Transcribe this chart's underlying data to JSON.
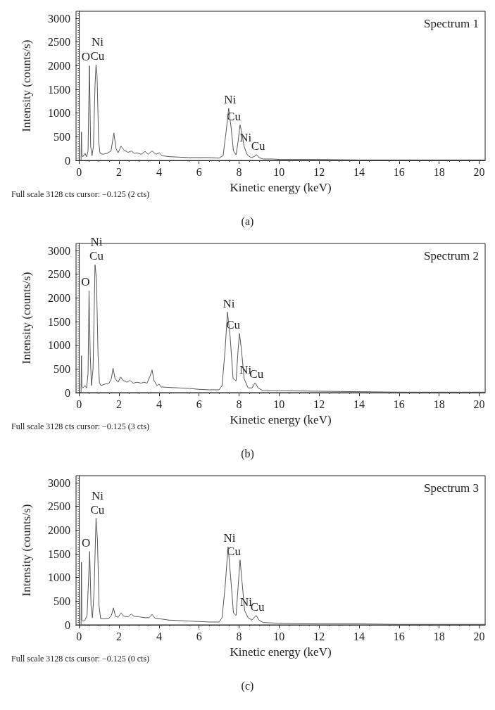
{
  "chart_data": [
    {
      "type": "line",
      "title": "Spectrum 1",
      "subtitle": "(a)",
      "xlabel": "Kinetic energy (keV)",
      "ylabel": "Intensity (counts/s)",
      "color": "#555555",
      "xlim": [
        -0.15,
        20.3
      ],
      "ylim": [
        0,
        3150
      ],
      "xticks": [
        0,
        2,
        4,
        6,
        8,
        10,
        12,
        14,
        16,
        18,
        20
      ],
      "yticks": [
        0,
        500,
        1000,
        1500,
        2000,
        2500,
        3000
      ],
      "x": [
        0.1,
        0.12,
        0.14,
        0.2,
        0.3,
        0.38,
        0.45,
        0.52,
        0.58,
        0.65,
        0.72,
        0.8,
        0.85,
        0.9,
        0.98,
        1.05,
        1.2,
        1.4,
        1.6,
        1.74,
        1.85,
        1.95,
        2.1,
        2.25,
        2.45,
        2.62,
        2.75,
        2.9,
        3.1,
        3.3,
        3.45,
        3.65,
        3.85,
        4.02,
        4.15,
        4.5,
        5,
        5.5,
        6,
        6.5,
        7,
        7.2,
        7.35,
        7.48,
        7.6,
        7.72,
        7.85,
        7.95,
        8.05,
        8.15,
        8.25,
        8.4,
        8.6,
        8.75,
        8.88,
        9.0,
        9.2,
        9.7,
        10,
        11,
        12,
        14,
        16,
        18,
        20,
        20.3
      ],
      "values": [
        0,
        600,
        100,
        80,
        150,
        80,
        200,
        2000,
        300,
        100,
        300,
        1600,
        2020,
        1800,
        400,
        150,
        130,
        150,
        200,
        580,
        250,
        160,
        300,
        220,
        170,
        200,
        150,
        160,
        130,
        190,
        130,
        200,
        130,
        160,
        100,
        80,
        70,
        60,
        60,
        60,
        50,
        100,
        600,
        1100,
        700,
        200,
        120,
        400,
        750,
        550,
        300,
        120,
        60,
        80,
        120,
        60,
        30,
        30,
        20,
        20,
        20,
        10,
        10,
        10,
        10,
        10
      ],
      "annotations": [
        "Full scale 3128 cts cursor: −0.125 (2 cts)",
        {
          "text": "O",
          "x": 0.52,
          "y": 2000
        },
        {
          "text": "Cu",
          "x": 0.85,
          "y": 2020
        },
        {
          "text": "Ni",
          "x": 0.85,
          "y": 2020
        },
        {
          "text": "Ni",
          "x": 7.48,
          "y": 1100
        },
        {
          "text": "Cu",
          "x": 8.05,
          "y": 750
        },
        {
          "text": "Ni",
          "x": 8.25,
          "y": 300
        },
        {
          "text": "Cu",
          "x": 8.88,
          "y": 120
        }
      ]
    },
    {
      "type": "line",
      "title": "Spectrum 2",
      "subtitle": "(b)",
      "xlabel": "Kinetic energy (keV)",
      "ylabel": "Intensity (counts/s)",
      "color": "#555555",
      "xlim": [
        -0.15,
        20.3
      ],
      "ylim": [
        0,
        3150
      ],
      "xticks": [
        0,
        2,
        4,
        6,
        8,
        10,
        12,
        14,
        16,
        18,
        20
      ],
      "yticks": [
        0,
        500,
        1000,
        1500,
        2000,
        2500,
        3000
      ],
      "x": [
        0.1,
        0.12,
        0.14,
        0.2,
        0.3,
        0.38,
        0.45,
        0.5,
        0.56,
        0.62,
        0.7,
        0.8,
        0.87,
        0.95,
        1.02,
        1.1,
        1.3,
        1.5,
        1.62,
        1.7,
        1.8,
        1.95,
        2.08,
        2.2,
        2.4,
        2.55,
        2.7,
        2.9,
        3.1,
        3.25,
        3.4,
        3.55,
        3.65,
        3.75,
        3.9,
        4.0,
        4.1,
        4.5,
        5,
        5.5,
        6,
        6.5,
        7,
        7.15,
        7.3,
        7.42,
        7.55,
        7.7,
        7.85,
        7.95,
        8.02,
        8.12,
        8.25,
        8.45,
        8.65,
        8.8,
        8.95,
        9.2,
        9.7,
        10,
        12,
        14,
        16,
        18,
        20,
        20.3
      ],
      "values": [
        0,
        780,
        120,
        100,
        150,
        100,
        400,
        2150,
        800,
        150,
        500,
        2700,
        2400,
        800,
        200,
        150,
        180,
        200,
        300,
        520,
        300,
        220,
        330,
        260,
        220,
        260,
        200,
        220,
        200,
        220,
        200,
        350,
        480,
        250,
        150,
        180,
        120,
        110,
        100,
        90,
        70,
        60,
        60,
        150,
        900,
        1700,
        1200,
        300,
        250,
        900,
        1250,
        900,
        300,
        100,
        100,
        210,
        100,
        40,
        40,
        40,
        30,
        20,
        10,
        10,
        10,
        10
      ],
      "annotations": [
        "Full scale 3128 cts cursor: −0.125 (3 cts)",
        {
          "text": "O",
          "x": 0.5,
          "y": 2150
        },
        {
          "text": "Cu",
          "x": 0.8,
          "y": 2700
        },
        {
          "text": "Ni",
          "x": 0.8,
          "y": 2700
        },
        {
          "text": "Ni",
          "x": 7.42,
          "y": 1700
        },
        {
          "text": "Cu",
          "x": 8.02,
          "y": 1250
        },
        {
          "text": "Ni",
          "x": 8.25,
          "y": 300
        },
        {
          "text": "Cu",
          "x": 8.8,
          "y": 210
        }
      ]
    },
    {
      "type": "line",
      "title": "Spectrum 3",
      "subtitle": "(c)",
      "xlabel": "Kinetic energy (keV)",
      "ylabel": "Intensity (counts/s)",
      "color": "#555555",
      "xlim": [
        -0.15,
        20.3
      ],
      "ylim": [
        0,
        3150
      ],
      "xticks": [
        0,
        2,
        4,
        6,
        8,
        10,
        12,
        14,
        16,
        18,
        20
      ],
      "yticks": [
        0,
        500,
        1000,
        1500,
        2000,
        2500,
        3000
      ],
      "x": [
        0.1,
        0.12,
        0.14,
        0.2,
        0.3,
        0.4,
        0.48,
        0.53,
        0.6,
        0.67,
        0.75,
        0.85,
        0.92,
        1.0,
        1.08,
        1.3,
        1.5,
        1.62,
        1.72,
        1.82,
        1.95,
        2.1,
        2.25,
        2.45,
        2.62,
        2.75,
        3.0,
        3.3,
        3.5,
        3.65,
        3.8,
        4.0,
        4.5,
        5,
        5.5,
        6,
        6.5,
        7,
        7.15,
        7.3,
        7.45,
        7.58,
        7.72,
        7.85,
        7.95,
        8.05,
        8.15,
        8.28,
        8.45,
        8.65,
        8.85,
        9.0,
        9.2,
        9.7,
        10,
        12,
        14,
        16,
        18,
        20,
        20.3
      ],
      "values": [
        0,
        1320,
        100,
        80,
        100,
        200,
        1000,
        1550,
        400,
        150,
        700,
        2250,
        1800,
        400,
        130,
        130,
        140,
        200,
        360,
        180,
        160,
        250,
        180,
        170,
        230,
        180,
        170,
        150,
        150,
        220,
        140,
        130,
        100,
        90,
        80,
        70,
        60,
        60,
        150,
        800,
        1650,
        1000,
        250,
        200,
        800,
        1370,
        900,
        300,
        150,
        100,
        200,
        100,
        50,
        40,
        30,
        20,
        20,
        10,
        10,
        10,
        10
      ],
      "annotations": [
        "Full scale 3128 cts cursor: −0.125 (0 cts)",
        {
          "text": "O",
          "x": 0.53,
          "y": 1550
        },
        {
          "text": "Cu",
          "x": 0.85,
          "y": 2250
        },
        {
          "text": "Ni",
          "x": 0.85,
          "y": 2250
        },
        {
          "text": "Ni",
          "x": 7.45,
          "y": 1650
        },
        {
          "text": "Cu",
          "x": 8.05,
          "y": 1370
        },
        {
          "text": "Ni",
          "x": 8.28,
          "y": 300
        },
        {
          "text": "Cu",
          "x": 8.85,
          "y": 200
        }
      ]
    }
  ]
}
